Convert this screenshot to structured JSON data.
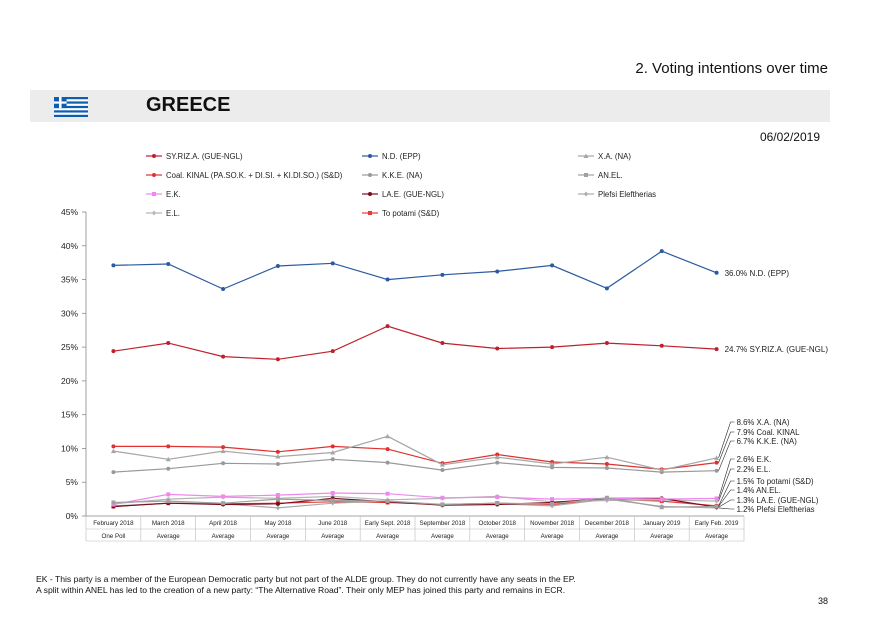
{
  "page": {
    "section_title": "2. Voting intentions over time",
    "country": "GREECE",
    "date": "06/02/2019",
    "footnotes": [
      "EK - This party is a member of the European Democratic party but not part of the ALDE group. They do not currently have any seats in the EP.",
      "A split within ANEL has led to the creation of a new party: “The Alternative Road”. Their only MEP has joined this party and remains in ECR."
    ],
    "page_number": "38"
  },
  "colors": {
    "flag_blue": "#0d5eaf",
    "header_bar": "#ececec"
  },
  "chart_data": {
    "type": "line",
    "categories": [
      "February 2018",
      "March 2018",
      "April 2018",
      "May 2018",
      "June 2018",
      "Early Sept. 2018",
      "September 2018",
      "October 2018",
      "November 2018",
      "December 2018",
      "January 2019",
      "Early Feb. 2019"
    ],
    "sublabels": [
      "One Poll",
      "Average",
      "Average",
      "Average",
      "Average",
      "Average",
      "Average",
      "Average",
      "Average",
      "Average",
      "Average",
      "Average"
    ],
    "ylim": [
      0,
      45
    ],
    "yticks": [
      "0%",
      "5%",
      "10%",
      "15%",
      "20%",
      "25%",
      "30%",
      "35%",
      "40%",
      "45%"
    ],
    "grid": false,
    "legend_position": "top",
    "series": [
      {
        "name": "SY.RIZ.A. (GUE-NGL)",
        "color": "#c0202e",
        "marker": "circle",
        "values": [
          24.4,
          25.6,
          23.6,
          23.2,
          24.4,
          28.1,
          25.6,
          24.8,
          25.0,
          25.6,
          25.2,
          24.7
        ]
      },
      {
        "name": "N.D. (EPP)",
        "color": "#2c5aa0",
        "marker": "circle",
        "values": [
          37.1,
          37.3,
          33.6,
          37.0,
          37.4,
          35.0,
          35.7,
          36.2,
          37.1,
          33.7,
          39.2,
          36.0
        ]
      },
      {
        "name": "X.A. (NA)",
        "color": "#a6a6a6",
        "marker": "triangle",
        "values": [
          9.6,
          8.4,
          9.6,
          8.8,
          9.4,
          11.8,
          7.6,
          8.7,
          7.7,
          8.7,
          6.8,
          8.6
        ]
      },
      {
        "name": "Coal. KINAL (PA.SO.K. + DI.SI. + KI.DI.SO.) (S&D)",
        "color": "#e03030",
        "marker": "circle",
        "values": [
          10.3,
          10.3,
          10.2,
          9.5,
          10.3,
          9.9,
          7.8,
          9.1,
          8.0,
          7.7,
          6.9,
          7.9
        ]
      },
      {
        "name": "K.K.E. (NA)",
        "color": "#999999",
        "marker": "circle",
        "values": [
          6.5,
          7.0,
          7.8,
          7.7,
          8.4,
          7.9,
          6.8,
          7.9,
          7.2,
          7.1,
          6.5,
          6.7
        ]
      },
      {
        "name": "AN.EL.",
        "color": "#a0a0a0",
        "marker": "square",
        "values": [
          2.0,
          2.2,
          1.9,
          2.5,
          2.3,
          2.2,
          1.7,
          1.9,
          1.8,
          2.7,
          1.3,
          1.4
        ]
      },
      {
        "name": "E.K.",
        "color": "#ee88ee",
        "marker": "square",
        "values": [
          1.7,
          3.2,
          2.9,
          3.1,
          3.4,
          3.3,
          2.7,
          2.8,
          2.5,
          2.6,
          2.5,
          2.6
        ]
      },
      {
        "name": "LA.E. (GUE-NGL)",
        "color": "#7a0d1d",
        "marker": "circle",
        "values": [
          1.4,
          1.9,
          1.7,
          1.8,
          2.6,
          2.1,
          1.6,
          1.7,
          2.0,
          2.6,
          2.6,
          1.3
        ]
      },
      {
        "name": "Plefsi Eleftherias",
        "color": "#aaaaaa",
        "marker": "diamond",
        "values": [
          1.5,
          1.9,
          1.8,
          1.2,
          1.9,
          2.2,
          1.6,
          1.8,
          1.5,
          2.5,
          1.4,
          1.2
        ]
      },
      {
        "name": "E.L.",
        "color": "#b5b5b5",
        "marker": "diamond",
        "values": [
          1.8,
          2.5,
          2.8,
          2.6,
          2.9,
          2.4,
          2.6,
          2.9,
          2.1,
          2.3,
          2.4,
          2.2
        ]
      },
      {
        "name": "To potami (S&D)",
        "color": "#e83a3a",
        "marker": "square",
        "values": [
          1.4,
          1.9,
          1.8,
          1.9,
          2.1,
          2.0,
          1.7,
          1.9,
          1.7,
          2.5,
          2.2,
          1.5
        ]
      }
    ],
    "end_labels": [
      {
        "series": "N.D. (EPP)",
        "text": "36.0% N.D. (EPP)"
      },
      {
        "series": "SY.RIZ.A. (GUE-NGL)",
        "text": "24.7% SY.RIZ.A. (GUE-NGL)"
      },
      {
        "series": "X.A. (NA)",
        "text": "8.6% X.A. (NA)"
      },
      {
        "series": "Coal. KINAL (PA.SO.K. + DI.SI. + KI.DI.SO.) (S&D)",
        "text": "7.9% Coal. KINAL"
      },
      {
        "series": "K.K.E. (NA)",
        "text": "6.7% K.K.E. (NA)"
      },
      {
        "series": "E.K.",
        "text": "2.6% E.K."
      },
      {
        "series": "E.L.",
        "text": "2.2% E.L."
      },
      {
        "series": "To potami (S&D)",
        "text": "1.5% To potami (S&D)"
      },
      {
        "series": "AN.EL.",
        "text": "1.4% AN.EL."
      },
      {
        "series": "LA.E. (GUE-NGL)",
        "text": "1.3% LA.E. (GUE-NGL)"
      },
      {
        "series": "Plefsi Eleftherias",
        "text": "1.2% Plefsi Eleftherias"
      }
    ]
  }
}
